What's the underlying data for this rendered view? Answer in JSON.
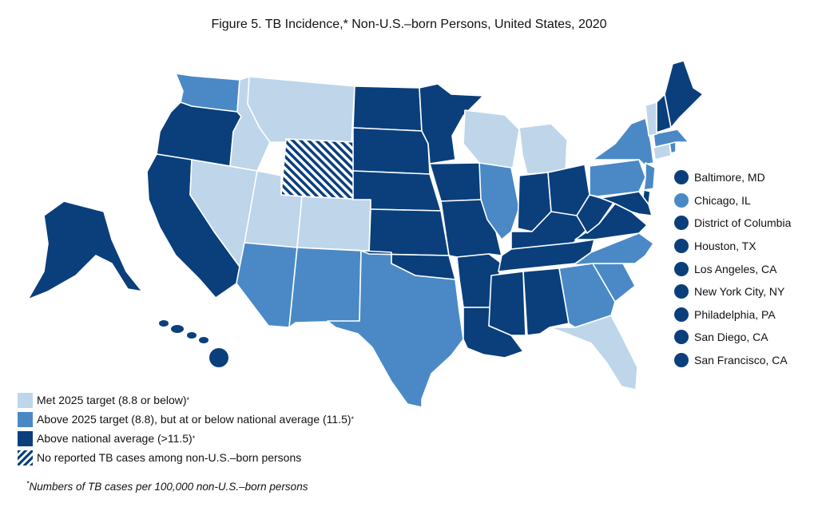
{
  "title": "Figure 5.  TB Incidence,* Non-U.S.–born Persons, United States, 2020",
  "colors": {
    "met": "#bed5ea",
    "above_target": "#4a89c6",
    "above_national": "#0a3f7c",
    "no_cases_stripe": "#0a3f7c"
  },
  "legend": [
    {
      "key": "met",
      "label": "Met 2025 target (8.8 or below)",
      "sup": "*"
    },
    {
      "key": "above_target",
      "label": "Above 2025 target (8.8), but at or below national average (11.5)",
      "sup": "*"
    },
    {
      "key": "above_national",
      "label": "Above national average (>11.5)",
      "sup": "*"
    },
    {
      "key": "no_cases",
      "label": "No reported TB cases among non-U.S.–born persons",
      "sup": ""
    }
  ],
  "cities": [
    {
      "name": "Baltimore, MD",
      "category": "above_national"
    },
    {
      "name": "Chicago, IL",
      "category": "above_target"
    },
    {
      "name": "District of Columbia",
      "category": "above_national"
    },
    {
      "name": "Houston, TX",
      "category": "above_national"
    },
    {
      "name": "Los Angeles, CA",
      "category": "above_national"
    },
    {
      "name": "New York City, NY",
      "category": "above_national"
    },
    {
      "name": "Philadelphia, PA",
      "category": "above_national"
    },
    {
      "name": "San Diego, CA",
      "category": "above_national"
    },
    {
      "name": "San Francisco, CA",
      "category": "above_national"
    }
  ],
  "states": {
    "WA": "above_target",
    "OR": "above_national",
    "CA": "above_national",
    "NV": "met",
    "ID": "met",
    "MT": "met",
    "WY": "no_cases",
    "UT": "met",
    "CO": "met",
    "AZ": "above_target",
    "NM": "above_target",
    "TX": "above_target",
    "ND": "above_national",
    "SD": "above_national",
    "NE": "above_national",
    "KS": "above_national",
    "OK": "above_national",
    "MN": "above_national",
    "IA": "above_national",
    "MO": "above_national",
    "AR": "above_national",
    "LA": "above_national",
    "WI": "met",
    "MI": "met",
    "IL": "above_target",
    "IN": "above_national",
    "OH": "above_national",
    "KY": "above_national",
    "TN": "above_national",
    "MS": "above_national",
    "AL": "above_national",
    "GA": "above_target",
    "FL": "met",
    "SC": "above_target",
    "NC": "above_target",
    "VA": "above_national",
    "WV": "above_national",
    "PA": "above_target",
    "NY": "above_target",
    "NJ": "above_target",
    "DE": "above_national",
    "MD": "above_national",
    "DC": "above_national",
    "CT": "met",
    "RI": "above_target",
    "MA": "above_target",
    "VT": "met",
    "NH": "above_national",
    "ME": "above_national",
    "AK": "above_national",
    "HI": "above_national"
  },
  "footnote": "Numbers of TB cases per 100,000 non-U.S.–born persons",
  "footnote_sup": "*"
}
